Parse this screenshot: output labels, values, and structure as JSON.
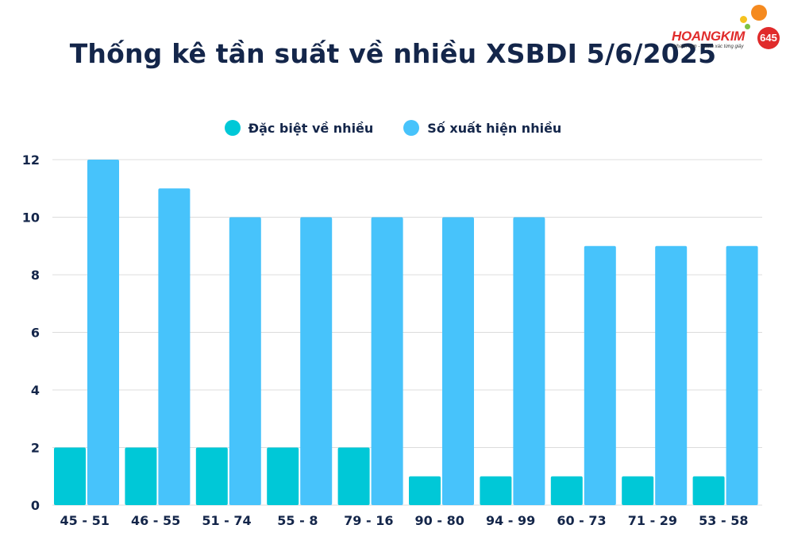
{
  "chart_data": {
    "type": "bar",
    "title": "Thống kê tần suất về nhiều XSBDI 5/6/2025",
    "categories": [
      "45 - 51",
      "46 - 55",
      "51 - 74",
      "55 - 8",
      "79 - 16",
      "90 - 80",
      "94 - 99",
      "60 - 73",
      "71 - 29",
      "53 - 58"
    ],
    "series": [
      {
        "name": "Đặc biệt về nhiều",
        "color": "#00c8d7",
        "values": [
          2,
          2,
          2,
          2,
          2,
          1,
          1,
          1,
          1,
          1
        ]
      },
      {
        "name": "Số xuất hiện nhiều",
        "color": "#47c3fb",
        "values": [
          12,
          11,
          10,
          10,
          10,
          10,
          10,
          9,
          9,
          9
        ]
      }
    ],
    "yticks": [
      "0",
      "2",
      "4",
      "6",
      "8",
      "10",
      "12"
    ],
    "ylim": [
      0,
      12
    ],
    "grid": true,
    "legend_position": "top"
  },
  "logo": {
    "text": "HOANGKIM",
    "number": "645",
    "tagline": "Nhanh hơn - Chính xác từng giây"
  }
}
